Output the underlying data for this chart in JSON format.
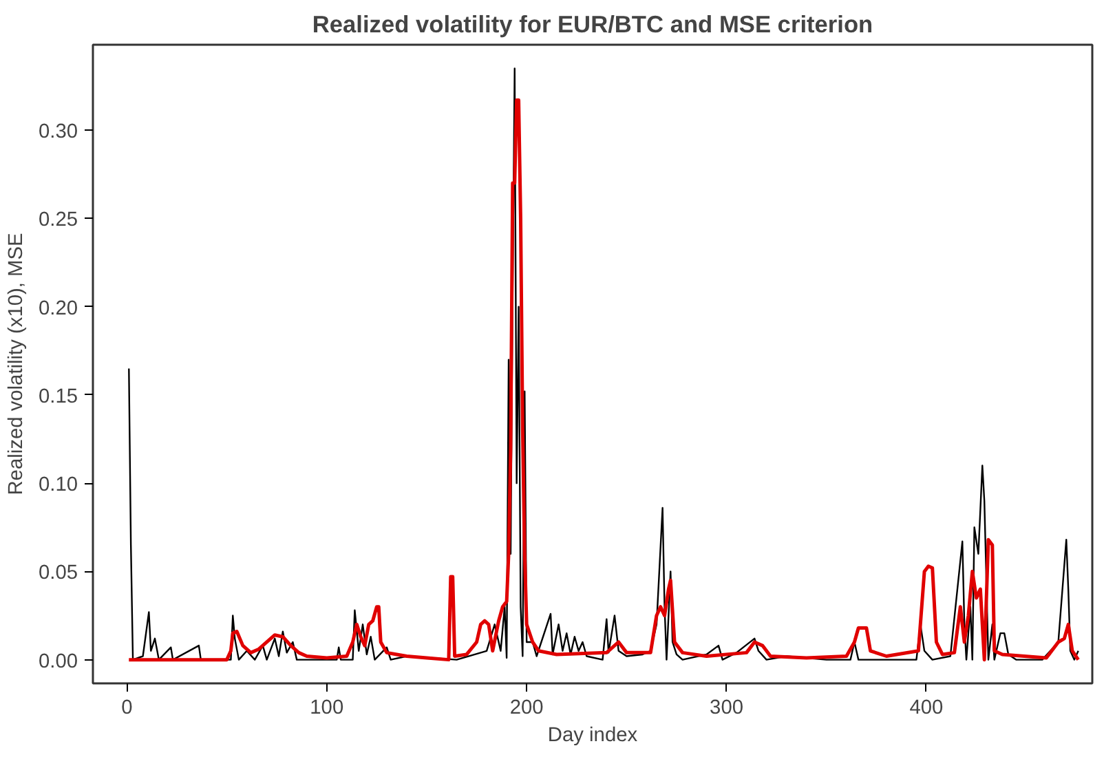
{
  "chart_data": {
    "type": "line",
    "title": "Realized volatility for EUR/BTC and MSE criterion",
    "xlabel": "Day index",
    "ylabel": "Realized volatility (x10), MSE",
    "xlim": [
      -17,
      483
    ],
    "ylim": [
      -0.0134,
      0.3484
    ],
    "xticks": [
      0,
      100,
      200,
      300,
      400
    ],
    "yticks": [
      {
        "value": 0,
        "label": "0.00"
      },
      {
        "value": 0.05,
        "label": "0.05"
      },
      {
        "value": 0.1,
        "label": "0.10"
      },
      {
        "value": 0.15,
        "label": "0.15"
      },
      {
        "value": 0.2,
        "label": "0.20"
      },
      {
        "value": 0.25,
        "label": "0.25"
      },
      {
        "value": 0.3,
        "label": "0.30"
      }
    ],
    "line_style": "solid",
    "series": [
      {
        "color": "#000000",
        "x": [
          1,
          2,
          3,
          8,
          11,
          12,
          14,
          16,
          22,
          23,
          36,
          37,
          52,
          53,
          54,
          56,
          60,
          64,
          68,
          70,
          74,
          76,
          78,
          80,
          83,
          85,
          95,
          105,
          106,
          107,
          113,
          114,
          116,
          118,
          120,
          122,
          124,
          130,
          132,
          140,
          165,
          180,
          184,
          187,
          189,
          190,
          191,
          192,
          193,
          194,
          195,
          196,
          197,
          198,
          199,
          200,
          203,
          205,
          212,
          213,
          216,
          218,
          220,
          222,
          224,
          226,
          228,
          230,
          238,
          240,
          241,
          244,
          246,
          250,
          258,
          262,
          265,
          268,
          269,
          270,
          272,
          273,
          275,
          278,
          290,
          296,
          298,
          305,
          314,
          316,
          320,
          330,
          350,
          362,
          364,
          366,
          380,
          395,
          397,
          399,
          403,
          412,
          418,
          419,
          420,
          422,
          423,
          424,
          426,
          427,
          428,
          429,
          431,
          433,
          434,
          437,
          439,
          441,
          445,
          458,
          466,
          470,
          471,
          472,
          474,
          476
        ],
        "values": [
          0.165,
          0.065,
          0.0,
          0.002,
          0.027,
          0.005,
          0.012,
          0.0,
          0.007,
          0.0,
          0.008,
          0.0,
          0.0,
          0.025,
          0.012,
          0.0,
          0.005,
          0.0,
          0.008,
          0.0,
          0.012,
          0.002,
          0.016,
          0.004,
          0.01,
          0.0,
          0.0,
          0.0,
          0.007,
          0.0,
          0.0,
          0.028,
          0.005,
          0.02,
          0.003,
          0.013,
          0.0,
          0.007,
          0.0,
          0.002,
          0.0,
          0.005,
          0.02,
          0.005,
          0.03,
          0.001,
          0.17,
          0.06,
          0.21,
          0.335,
          0.1,
          0.2,
          0.03,
          0.002,
          0.152,
          0.01,
          0.01,
          0.002,
          0.026,
          0.003,
          0.02,
          0.005,
          0.015,
          0.003,
          0.013,
          0.005,
          0.01,
          0.002,
          0.0,
          0.023,
          0.004,
          0.025,
          0.005,
          0.002,
          0.003,
          0.005,
          0.02,
          0.086,
          0.03,
          0.0,
          0.05,
          0.01,
          0.003,
          0.0,
          0.003,
          0.008,
          0.0,
          0.004,
          0.012,
          0.005,
          0.0,
          0.002,
          0.0,
          0.0,
          0.01,
          0.0,
          0.0,
          0.0,
          0.02,
          0.005,
          0.0,
          0.002,
          0.067,
          0.02,
          0.0,
          0.03,
          0.0,
          0.075,
          0.06,
          0.085,
          0.11,
          0.09,
          0.0,
          0.02,
          0.0,
          0.015,
          0.015,
          0.003,
          0.0,
          0.0,
          0.01,
          0.068,
          0.04,
          0.005,
          0.0,
          0.005
        ]
      },
      {
        "color": "#e00000",
        "x": [
          1,
          50,
          52,
          53,
          55,
          58,
          62,
          66,
          70,
          74,
          78,
          82,
          86,
          90,
          100,
          110,
          113,
          115,
          117,
          119,
          121,
          123,
          125,
          126,
          127,
          130,
          135,
          140,
          150,
          161,
          162,
          163,
          164,
          170,
          175,
          177,
          179,
          181,
          183,
          186,
          188,
          190,
          191,
          192,
          193,
          194,
          195,
          196,
          197,
          198,
          199,
          200,
          203,
          206,
          215,
          240,
          246,
          250,
          262,
          265,
          267,
          269,
          271,
          272,
          274,
          278,
          290,
          310,
          314,
          318,
          322,
          340,
          360,
          364,
          366,
          370,
          372,
          380,
          396,
          399,
          401,
          403,
          405,
          408,
          414,
          417,
          419,
          421,
          423,
          425,
          427,
          429,
          431,
          433,
          434,
          438,
          460,
          466,
          469,
          471,
          473,
          476
        ],
        "values": [
          0.0,
          0.0,
          0.005,
          0.015,
          0.016,
          0.008,
          0.004,
          0.006,
          0.01,
          0.014,
          0.013,
          0.008,
          0.004,
          0.002,
          0.001,
          0.002,
          0.01,
          0.02,
          0.013,
          0.008,
          0.02,
          0.022,
          0.03,
          0.03,
          0.01,
          0.004,
          0.003,
          0.002,
          0.001,
          0.0,
          0.047,
          0.047,
          0.002,
          0.003,
          0.01,
          0.02,
          0.022,
          0.02,
          0.005,
          0.022,
          0.03,
          0.033,
          0.06,
          0.12,
          0.27,
          0.27,
          0.317,
          0.317,
          0.25,
          0.13,
          0.06,
          0.02,
          0.01,
          0.005,
          0.003,
          0.004,
          0.01,
          0.004,
          0.004,
          0.025,
          0.03,
          0.025,
          0.04,
          0.045,
          0.01,
          0.004,
          0.002,
          0.004,
          0.01,
          0.008,
          0.002,
          0.001,
          0.002,
          0.01,
          0.018,
          0.018,
          0.005,
          0.002,
          0.005,
          0.05,
          0.053,
          0.052,
          0.01,
          0.003,
          0.004,
          0.03,
          0.01,
          0.025,
          0.05,
          0.035,
          0.04,
          0.0,
          0.068,
          0.065,
          0.005,
          0.003,
          0.001,
          0.01,
          0.012,
          0.02,
          0.005,
          0.0
        ]
      }
    ]
  }
}
